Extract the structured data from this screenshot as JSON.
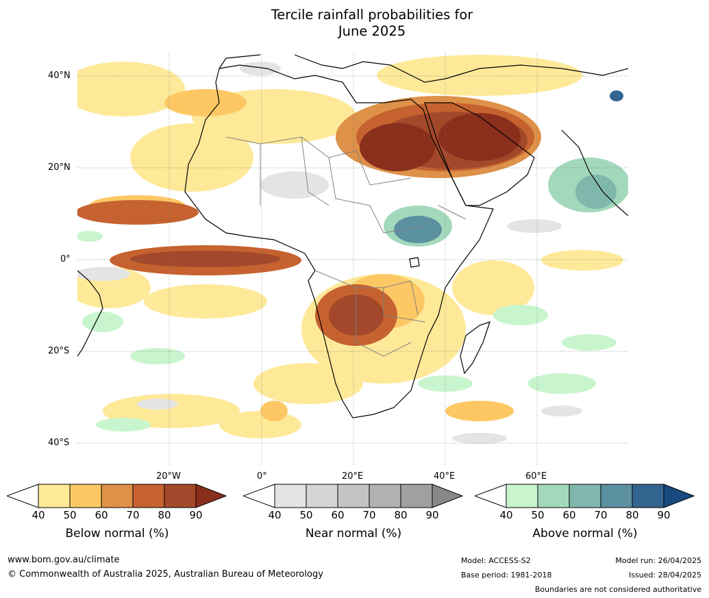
{
  "title_line1": "Tercile rainfall probabilities for",
  "title_line2": "June 2025",
  "map": {
    "lat_labels": [
      "40°N",
      "20°N",
      "0°",
      "20°S",
      "40°S"
    ],
    "lon_labels": [
      "20°W",
      "0°",
      "20°E",
      "40°E",
      "60°E"
    ],
    "colors": {
      "below": [
        "#fee999",
        "#fdc864",
        "#de9148",
        "#c5622f",
        "#a3482a",
        "#8a2f1c"
      ],
      "near": [
        "#e4e4e4",
        "#d4d4d4",
        "#c4c4c4",
        "#b2b2b2",
        "#a0a0a0",
        "#888888"
      ],
      "above": [
        "#c8f5cd",
        "#a3d8bc",
        "#7fb7ad",
        "#5a909f",
        "#32658f",
        "#194a7f"
      ]
    }
  },
  "legend": {
    "below": {
      "ticks": [
        "40",
        "50",
        "60",
        "70",
        "80",
        "90"
      ],
      "title": "Below normal (%)"
    },
    "near": {
      "ticks": [
        "40",
        "50",
        "60",
        "70",
        "80",
        "90"
      ],
      "title": "Near normal (%)"
    },
    "above": {
      "ticks": [
        "40",
        "50",
        "60",
        "70",
        "80",
        "90"
      ],
      "title": "Above normal (%)"
    }
  },
  "footer": {
    "url": "www.bom.gov.au/climate",
    "copyright": "© Commonwealth of Australia 2025, Australian Bureau of Meteorology",
    "model": "Model: ACCESS-S2",
    "base_period": "Base period: 1981-2018",
    "model_run": "Model run: 26/04/2025",
    "issued": "Issued: 28/04/2025",
    "boundaries": "Boundaries are not considered authoritative"
  }
}
